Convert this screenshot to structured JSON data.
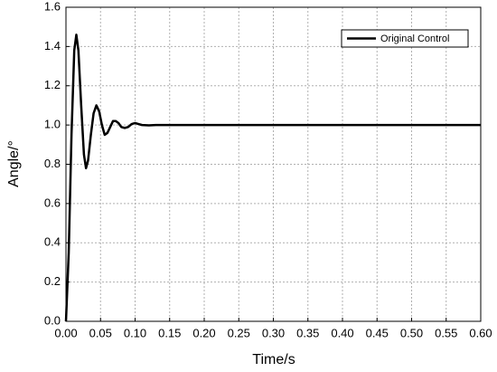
{
  "chart_data": {
    "type": "line",
    "x_label": "Time/s",
    "y_label": "Angle/°",
    "x": [
      0,
      0.004,
      0.008,
      0.012,
      0.015,
      0.018,
      0.022,
      0.026,
      0.029,
      0.032,
      0.036,
      0.04,
      0.044,
      0.048,
      0.052,
      0.056,
      0.06,
      0.064,
      0.068,
      0.072,
      0.076,
      0.08,
      0.085,
      0.09,
      0.095,
      0.1,
      0.105,
      0.11,
      0.12,
      0.13,
      0.14,
      0.2,
      0.3,
      0.4,
      0.5,
      0.6
    ],
    "series": [
      {
        "name": "Original Control",
        "color": "#000000",
        "values": [
          0,
          0.35,
          0.95,
          1.38,
          1.46,
          1.38,
          1.1,
          0.85,
          0.78,
          0.82,
          0.95,
          1.06,
          1.1,
          1.07,
          1.0,
          0.95,
          0.96,
          0.99,
          1.02,
          1.02,
          1.01,
          0.99,
          0.985,
          0.99,
          1.005,
          1.01,
          1.005,
          1.0,
          0.998,
          1.0,
          1.0,
          1.0,
          1.0,
          1.0,
          1.0,
          1.0
        ]
      }
    ],
    "xlim": [
      0,
      0.6
    ],
    "ylim": [
      0,
      1.6
    ],
    "xticks": [
      {
        "value": 0,
        "label": "0.00"
      },
      {
        "value": 0.05,
        "label": "0.05"
      },
      {
        "value": 0.1,
        "label": "0.10"
      },
      {
        "value": 0.15,
        "label": "0.15"
      },
      {
        "value": 0.2,
        "label": "0.20"
      },
      {
        "value": 0.25,
        "label": "0.25"
      },
      {
        "value": 0.3,
        "label": "0.30"
      },
      {
        "value": 0.35,
        "label": "0.35"
      },
      {
        "value": 0.4,
        "label": "0.40"
      },
      {
        "value": 0.45,
        "label": "0.45"
      },
      {
        "value": 0.5,
        "label": "0.50"
      },
      {
        "value": 0.55,
        "label": "0.55"
      },
      {
        "value": 0.6,
        "label": "0.60"
      }
    ],
    "yticks": [
      {
        "value": 0,
        "label": "0.0"
      },
      {
        "value": 0.2,
        "label": "0.2"
      },
      {
        "value": 0.4,
        "label": "0.4"
      },
      {
        "value": 0.6,
        "label": "0.6"
      },
      {
        "value": 0.8,
        "label": "0.8"
      },
      {
        "value": 1.0,
        "label": "1.0"
      },
      {
        "value": 1.2,
        "label": "1.2"
      },
      {
        "value": 1.4,
        "label": "1.4"
      },
      {
        "value": 1.6,
        "label": "1.6"
      }
    ],
    "grid": true,
    "legend": "upper right"
  }
}
